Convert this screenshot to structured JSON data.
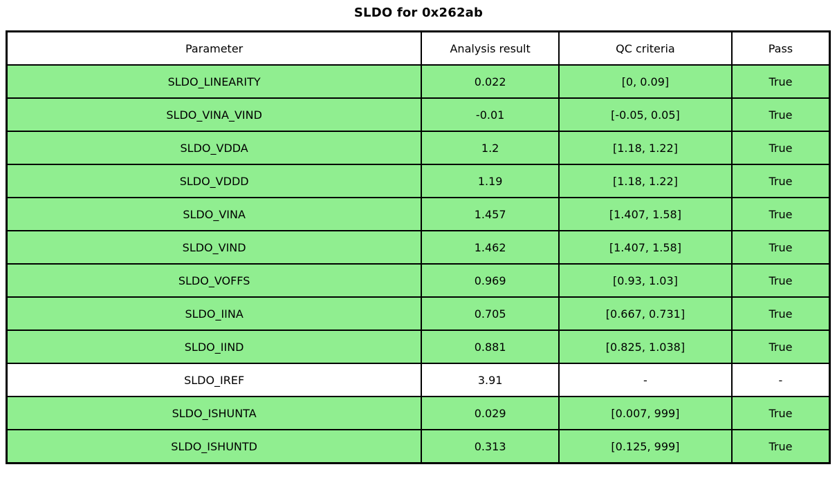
{
  "title": "SLDO for 0x262ab",
  "colors": {
    "pass_green": "#90EE90",
    "neutral_white": "#FFFFFF",
    "border": "#000000",
    "text": "#000000"
  },
  "chart_data": {
    "type": "table",
    "title": "SLDO for 0x262ab",
    "columns": [
      "Parameter",
      "Analysis result",
      "QC criteria",
      "Pass"
    ],
    "rows": [
      {
        "parameter": "SLDO_LINEARITY",
        "analysis_result": "0.022",
        "qc_criteria": "[0, 0.09]",
        "pass": "True",
        "highlighted": true
      },
      {
        "parameter": "SLDO_VINA_VIND",
        "analysis_result": "-0.01",
        "qc_criteria": "[-0.05, 0.05]",
        "pass": "True",
        "highlighted": true
      },
      {
        "parameter": "SLDO_VDDA",
        "analysis_result": "1.2",
        "qc_criteria": "[1.18, 1.22]",
        "pass": "True",
        "highlighted": true
      },
      {
        "parameter": "SLDO_VDDD",
        "analysis_result": "1.19",
        "qc_criteria": "[1.18, 1.22]",
        "pass": "True",
        "highlighted": true
      },
      {
        "parameter": "SLDO_VINA",
        "analysis_result": "1.457",
        "qc_criteria": "[1.407, 1.58]",
        "pass": "True",
        "highlighted": true
      },
      {
        "parameter": "SLDO_VIND",
        "analysis_result": "1.462",
        "qc_criteria": "[1.407, 1.58]",
        "pass": "True",
        "highlighted": true
      },
      {
        "parameter": "SLDO_VOFFS",
        "analysis_result": "0.969",
        "qc_criteria": "[0.93, 1.03]",
        "pass": "True",
        "highlighted": true
      },
      {
        "parameter": "SLDO_IINA",
        "analysis_result": "0.705",
        "qc_criteria": "[0.667, 0.731]",
        "pass": "True",
        "highlighted": true
      },
      {
        "parameter": "SLDO_IIND",
        "analysis_result": "0.881",
        "qc_criteria": "[0.825, 1.038]",
        "pass": "True",
        "highlighted": true
      },
      {
        "parameter": "SLDO_IREF",
        "analysis_result": "3.91",
        "qc_criteria": "-",
        "pass": "-",
        "highlighted": false
      },
      {
        "parameter": "SLDO_ISHUNTA",
        "analysis_result": "0.029",
        "qc_criteria": "[0.007, 999]",
        "pass": "True",
        "highlighted": true
      },
      {
        "parameter": "SLDO_ISHUNTD",
        "analysis_result": "0.313",
        "qc_criteria": "[0.125, 999]",
        "pass": "True",
        "highlighted": true
      }
    ],
    "layout": {
      "column_width_percents": [
        50.4,
        16.7,
        21.0,
        11.9
      ],
      "highlight_meaning": "row passes QC criteria"
    }
  }
}
